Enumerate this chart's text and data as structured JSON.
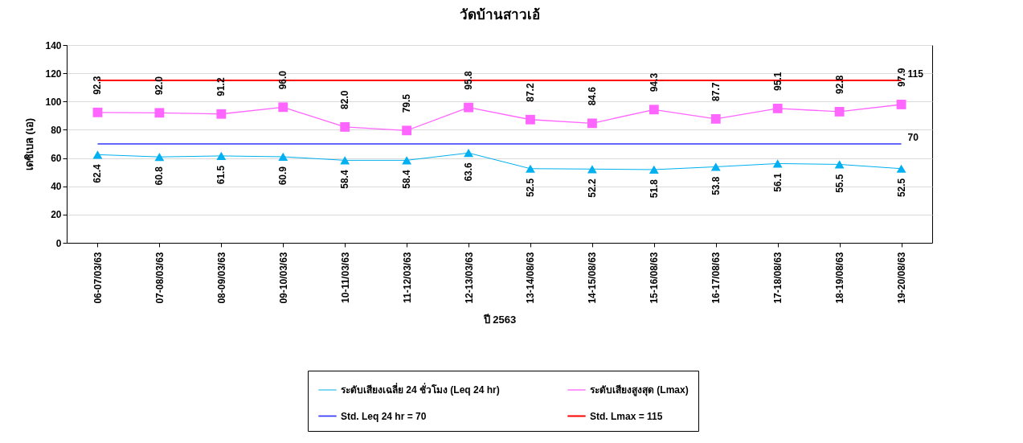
{
  "chart_data": {
    "type": "line",
    "title": "วัดบ้านสาวเอ้",
    "xlabel": "ปี 2563",
    "ylabel": "เดซิเบล (เอ)",
    "categories": [
      "06-07/03/63",
      "07-08/03/63",
      "08-09/03/63",
      "09-10/03/63",
      "10-11/03/63",
      "11-12/03/63",
      "12-13/03/63",
      "13-14/08/63",
      "14-15/08/63",
      "15-16/08/63",
      "16-17/08/63",
      "17-18/08/63",
      "18-19/08/63",
      "19-20/08/63"
    ],
    "series": [
      {
        "name": "ระดับเสียงเฉลี่ย 24 ชั่วโมง (Leq 24 hr)",
        "color": "#00b0f0",
        "marker": "triangle",
        "values": [
          62.4,
          60.8,
          61.5,
          60.9,
          58.4,
          58.4,
          63.6,
          52.5,
          52.2,
          51.8,
          53.8,
          56.1,
          55.5,
          52.5
        ],
        "value_labels": [
          "62.4",
          "60.8",
          "61.5",
          "60.9",
          "58.4",
          "58.4",
          "63.6",
          "52.5",
          "52.2",
          "51.8",
          "53.8",
          "56.1",
          "55.5",
          "52.5"
        ]
      },
      {
        "name": "ระดับเสียงสูงสุด (Lmax)",
        "color": "#ff66ff",
        "marker": "square",
        "values": [
          92.3,
          92.0,
          91.2,
          96.0,
          82.0,
          79.5,
          95.8,
          87.2,
          84.6,
          94.3,
          87.7,
          95.1,
          92.8,
          97.9
        ],
        "value_labels": [
          "92.3",
          "92.0",
          "91.2",
          "96.0",
          "82.0",
          "79.5",
          "95.8",
          "87.2",
          "84.6",
          "94.3",
          "87.7",
          "95.1",
          "92.8",
          "97.9"
        ]
      },
      {
        "name": "Std. Leq 24 hr = 70",
        "color": "#3333ff",
        "marker": "none",
        "values": [
          70,
          70,
          70,
          70,
          70,
          70,
          70,
          70,
          70,
          70,
          70,
          70,
          70,
          70
        ],
        "value_labels": [
          null,
          null,
          null,
          null,
          null,
          null,
          null,
          null,
          null,
          null,
          null,
          null,
          null,
          "70"
        ]
      },
      {
        "name": "Std. Lmax = 115",
        "color": "#ff0000",
        "marker": "none",
        "values": [
          115,
          115,
          115,
          115,
          115,
          115,
          115,
          115,
          115,
          115,
          115,
          115,
          115,
          115
        ],
        "value_labels": [
          null,
          null,
          null,
          null,
          null,
          null,
          null,
          null,
          null,
          null,
          null,
          null,
          null,
          "115"
        ]
      }
    ],
    "ylim": [
      0,
      140
    ],
    "yticks": [
      0,
      20,
      40,
      60,
      80,
      100,
      120,
      140
    ],
    "grid": "y",
    "legend": "bottom"
  }
}
